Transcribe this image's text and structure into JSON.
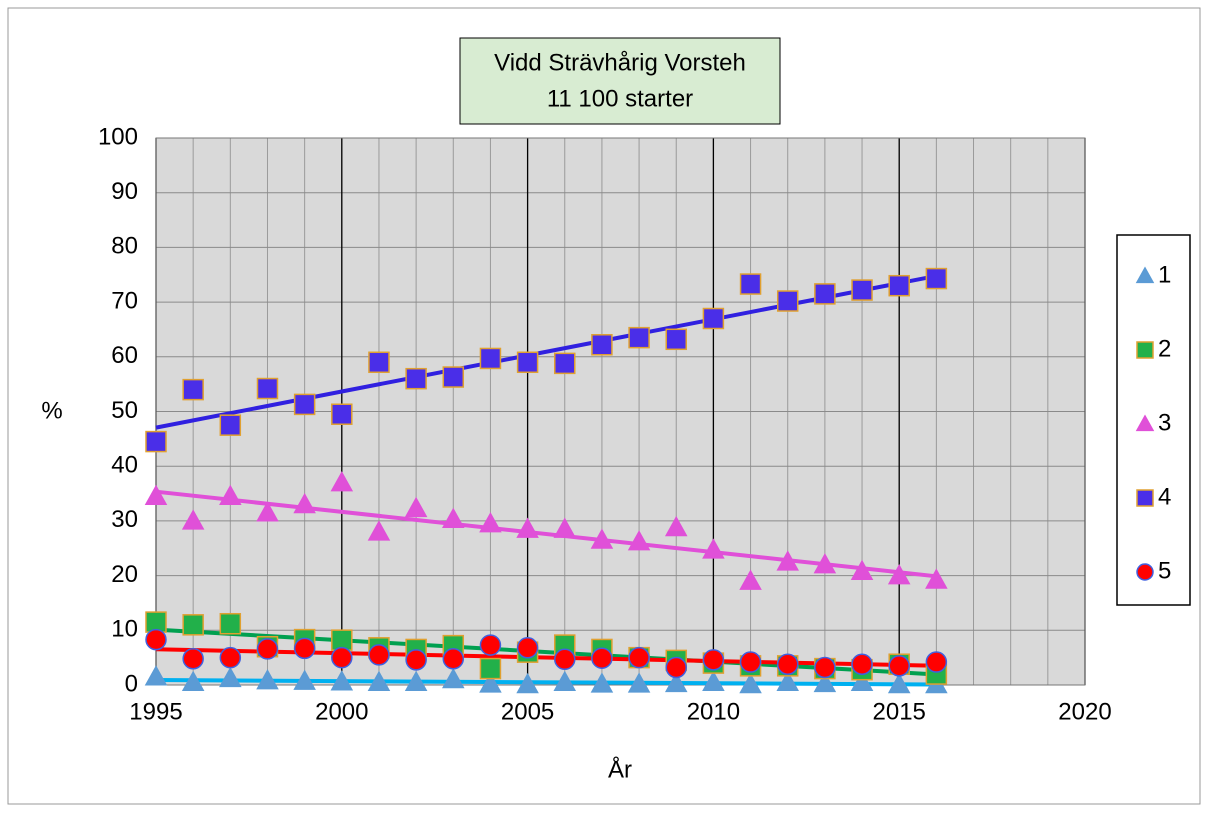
{
  "chart_data": {
    "type": "scatter",
    "title": "Vidd Strävhårig Vorsteh",
    "subtitle": "11 100 starter",
    "xlabel": "År",
    "ylabel": "%",
    "x": [
      1995,
      1996,
      1997,
      1998,
      1999,
      2000,
      2001,
      2002,
      2003,
      2004,
      2005,
      2006,
      2007,
      2008,
      2009,
      2010,
      2011,
      2012,
      2013,
      2014,
      2015,
      2016
    ],
    "xlim": [
      1995,
      2020
    ],
    "xticks": [
      1995,
      2000,
      2005,
      2010,
      2015,
      2020
    ],
    "x_minor_step": 1,
    "ylim": [
      0,
      100
    ],
    "yticks": [
      0,
      10,
      20,
      30,
      40,
      50,
      60,
      70,
      80,
      90,
      100
    ],
    "grid": true,
    "legend": "right",
    "trendline": true,
    "series": [
      {
        "name": "1",
        "marker": "triangle",
        "color": "#5b9bd5",
        "edgecolor": "#5b9bd5",
        "trend_color": "#00b0f0",
        "values": [
          1.5,
          0.5,
          1.2,
          0.8,
          0.7,
          0.6,
          0.5,
          0.5,
          1,
          0.2,
          0.1,
          0.5,
          0.2,
          0.2,
          0.3,
          0.5,
          0.1,
          0.5,
          0.3,
          0.5,
          0.1,
          0.1
        ]
      },
      {
        "name": "2",
        "marker": "square",
        "color": "#22b04a",
        "edgecolor": "#e0a030",
        "trend_color": "#00a050",
        "values": [
          11.5,
          11,
          11.2,
          7,
          8.3,
          8.2,
          6.8,
          6.5,
          7.2,
          3,
          6,
          7.3,
          6.5,
          5,
          4.5,
          4,
          3.5,
          3.5,
          3,
          2.8,
          3.8,
          2
        ]
      },
      {
        "name": "3",
        "marker": "triangle",
        "color": "#e050d8",
        "edgecolor": "#e050d8",
        "trend_color": "#e050d8",
        "values": [
          34.5,
          30,
          34.5,
          31.5,
          33,
          37,
          28,
          32.3,
          30.3,
          29.5,
          28.5,
          28.5,
          26.5,
          26.2,
          28.8,
          24.7,
          19,
          22.5,
          22,
          20.8,
          20,
          19.2
        ]
      },
      {
        "name": "4",
        "marker": "square",
        "color": "#4a2ee8",
        "edgecolor": "#e0a030",
        "trend_color": "#3020e0",
        "values": [
          44.5,
          54,
          47.5,
          54.2,
          51.3,
          49.5,
          59,
          56,
          56.3,
          59.7,
          59,
          58.8,
          62.2,
          63.5,
          63.2,
          67,
          73.3,
          70.2,
          71.5,
          72.2,
          73,
          74.3
        ]
      },
      {
        "name": "5",
        "marker": "circle",
        "color": "#ff0000",
        "edgecolor": "#4060e0",
        "trend_color": "#ff0000",
        "values": [
          8.3,
          4.8,
          5,
          6.6,
          6.7,
          5,
          5.5,
          4.6,
          4.8,
          7.3,
          6.8,
          4.7,
          4.9,
          5,
          3.2,
          4.6,
          4.2,
          3.8,
          3.2,
          3.8,
          3.5,
          4.2
        ]
      }
    ]
  }
}
